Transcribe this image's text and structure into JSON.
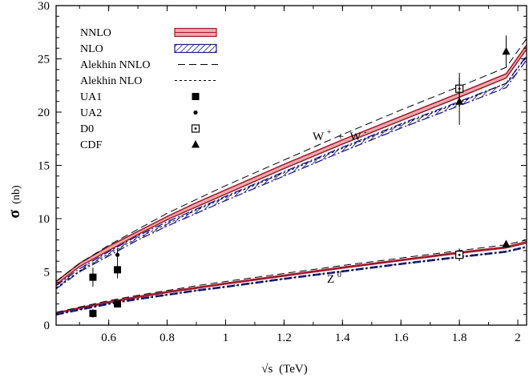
{
  "chart_data": {
    "type": "line",
    "xlabel_prefix": "√s",
    "xlabel_unit": "(TeV)",
    "ylabel_symbol": "σ",
    "ylabel_unit": "(nb)",
    "xlim": [
      0.42,
      2.03
    ],
    "ylim": [
      0,
      30
    ],
    "xticks": [
      0.6,
      0.8,
      1,
      1.2,
      1.4,
      1.6,
      1.8,
      2
    ],
    "xtick_labels": [
      "0.6",
      "0.8",
      "1",
      "1.2",
      "1.4",
      "1.6",
      "1.8",
      "2"
    ],
    "yticks": [
      0,
      5,
      10,
      15,
      20,
      25,
      30
    ],
    "ytick_labels": [
      "0",
      "5",
      "10",
      "15",
      "20",
      "25",
      "30"
    ],
    "legend_position": "top-left",
    "annotations": {
      "w_base": "W",
      "w_sup": "+",
      "w_plus": " + ",
      "w_base2": "W",
      "w_sup2": "-",
      "z_base": "Z",
      "z_sup": "0"
    },
    "legend": [
      {
        "label": "NNLO",
        "key": "nnlo"
      },
      {
        "label": "NLO",
        "key": "nlo"
      },
      {
        "label": "Alekhin NNLO",
        "key": "alekhin_nnlo"
      },
      {
        "label": "Alekhin NLO",
        "key": "alekhin_nlo"
      },
      {
        "label": "UA1",
        "key": "ua1"
      },
      {
        "label": "UA2",
        "key": "ua2"
      },
      {
        "label": "D0",
        "key": "d0"
      },
      {
        "label": "CDF",
        "key": "cdf"
      }
    ],
    "colors": {
      "nnlo": "#a0182a",
      "nnlo_fill": "#e8aaaa",
      "nlo": "#1a1a8c",
      "nlo_fill": "#8f8fd8"
    },
    "x": [
      0.42,
      0.5,
      0.6,
      0.7,
      0.8,
      0.9,
      1.0,
      1.2,
      1.4,
      1.6,
      1.8,
      1.96,
      2.03
    ],
    "series": [
      {
        "name": "NNLO",
        "process": "W",
        "band": "nnlo",
        "lower": [
          3.8,
          5.5,
          7.0,
          8.5,
          9.9,
          11.1,
          12.3,
          14.7,
          17.0,
          19.2,
          21.4,
          23.2,
          25.9
        ],
        "upper": [
          4.1,
          5.8,
          7.4,
          8.8,
          10.2,
          11.5,
          12.7,
          15.1,
          17.4,
          19.6,
          21.8,
          23.6,
          26.3
        ]
      },
      {
        "name": "NLO",
        "process": "W",
        "band": "nlo",
        "lower": [
          3.4,
          5.0,
          6.5,
          8.0,
          9.3,
          10.5,
          11.7,
          14.0,
          16.3,
          18.5,
          20.6,
          22.3,
          24.9
        ],
        "upper": [
          3.7,
          5.3,
          6.9,
          8.4,
          9.7,
          10.9,
          12.1,
          14.4,
          16.7,
          18.9,
          21.0,
          22.7,
          25.3
        ]
      },
      {
        "name": "Alekhin NNLO",
        "process": "W",
        "line": "alekhin_nnlo",
        "values": [
          4.1,
          5.8,
          7.5,
          9.0,
          10.5,
          11.8,
          13.1,
          15.5,
          17.9,
          20.2,
          22.4,
          24.2,
          26.9
        ]
      },
      {
        "name": "Alekhin NLO",
        "process": "W",
        "line": "alekhin_nlo",
        "values": [
          3.5,
          5.1,
          6.7,
          8.2,
          9.5,
          10.8,
          12.0,
          14.3,
          16.6,
          18.8,
          20.9,
          22.7,
          25.2
        ]
      },
      {
        "name": "NNLO",
        "process": "Z",
        "band": "nnlo",
        "lower": [
          1.05,
          1.55,
          2.1,
          2.6,
          3.05,
          3.45,
          3.85,
          4.6,
          5.35,
          6.05,
          6.75,
          7.25,
          7.7
        ],
        "upper": [
          1.15,
          1.65,
          2.2,
          2.7,
          3.15,
          3.55,
          3.95,
          4.7,
          5.45,
          6.15,
          6.85,
          7.35,
          7.85
        ]
      },
      {
        "name": "NLO",
        "process": "Z",
        "band": "nlo",
        "lower": [
          0.95,
          1.4,
          1.95,
          2.4,
          2.8,
          3.2,
          3.55,
          4.3,
          5.0,
          5.7,
          6.35,
          6.85,
          7.3
        ],
        "upper": [
          1.05,
          1.5,
          2.05,
          2.5,
          2.9,
          3.3,
          3.65,
          4.4,
          5.1,
          5.8,
          6.45,
          6.95,
          7.4
        ]
      },
      {
        "name": "Alekhin NNLO",
        "process": "Z",
        "line": "alekhin_nnlo",
        "values": [
          1.2,
          1.7,
          2.3,
          2.8,
          3.25,
          3.7,
          4.1,
          4.85,
          5.6,
          6.3,
          7.0,
          7.55,
          8.0
        ]
      },
      {
        "name": "Alekhin NLO",
        "process": "Z",
        "line": "alekhin_nlo",
        "values": [
          1.0,
          1.45,
          2.0,
          2.45,
          2.85,
          3.25,
          3.6,
          4.35,
          5.05,
          5.75,
          6.4,
          6.9,
          7.35
        ]
      }
    ],
    "points": [
      {
        "name": "UA1",
        "marker": "filled-square",
        "x": 0.546,
        "y": 4.5,
        "err": 0.9
      },
      {
        "name": "UA1",
        "marker": "filled-square",
        "x": 0.546,
        "y": 1.1,
        "err": 0.4
      },
      {
        "name": "UA1",
        "marker": "filled-square",
        "x": 0.63,
        "y": 5.2,
        "err": 0.8
      },
      {
        "name": "UA1",
        "marker": "filled-square",
        "x": 0.63,
        "y": 2.0,
        "err": 0.3
      },
      {
        "name": "UA2",
        "marker": "filled-circle",
        "x": 0.63,
        "y": 6.6,
        "err": 0.6
      },
      {
        "name": "UA2",
        "marker": "filled-circle",
        "x": 0.63,
        "y": 1.95,
        "err": 0.15
      },
      {
        "name": "D0",
        "marker": "dotted-square",
        "x": 1.8,
        "y": 22.2,
        "err": 1.5
      },
      {
        "name": "D0",
        "marker": "dotted-square",
        "x": 1.8,
        "y": 6.6,
        "err": 0.6
      },
      {
        "name": "CDF",
        "marker": "filled-triangle",
        "x": 1.8,
        "y": 21.0,
        "err": 2.2
      },
      {
        "name": "CDF",
        "marker": "filled-triangle",
        "x": 1.96,
        "y": 25.7,
        "err": 1.5
      },
      {
        "name": "CDF",
        "marker": "filled-triangle",
        "x": 1.96,
        "y": 7.6,
        "err": 0.3
      }
    ]
  }
}
